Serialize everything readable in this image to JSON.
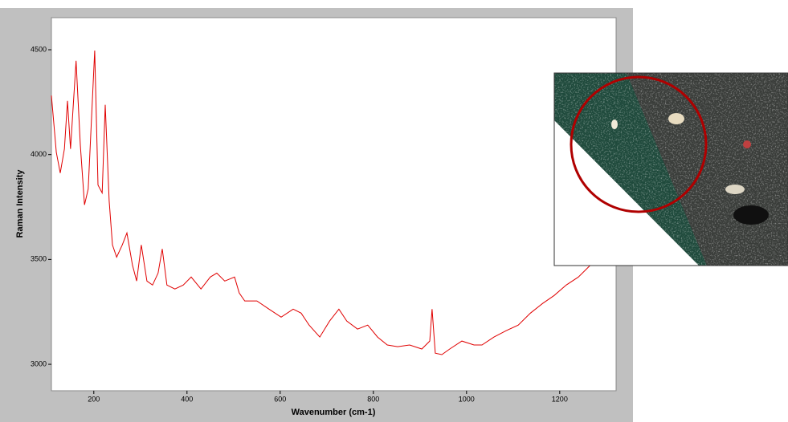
{
  "chart_data": {
    "type": "line",
    "xlabel": "Wavenumber (cm-1)",
    "ylabel": "Raman Intensity",
    "xlim": [
      109,
      1321
    ],
    "ylim": [
      2874,
      4653
    ],
    "xticks": [
      200,
      400,
      600,
      800,
      1000,
      1200
    ],
    "yticks": [
      3000,
      3500,
      4000,
      4500
    ],
    "grid": false,
    "x": [
      109,
      119.6,
      128,
      137,
      143.5,
      150,
      162,
      171,
      180,
      188,
      202,
      209,
      218,
      224.5,
      233,
      240,
      249,
      261,
      271,
      283,
      292,
      302,
      314,
      326,
      338,
      347,
      357,
      374,
      392,
      409,
      430,
      450,
      464,
      481,
      502,
      512,
      524,
      550,
      576,
      602,
      628,
      645,
      662,
      685,
      706,
      726,
      743,
      766,
      788,
      809,
      830,
      852,
      878,
      904,
      921,
      926,
      933,
      947,
      964,
      990,
      1016,
      1033,
      1059,
      1085,
      1111,
      1137,
      1163,
      1188,
      1214,
      1240,
      1266
    ],
    "series": [
      {
        "color": "#e00000",
        "values": [
          4282,
          4011,
          3912,
          4027,
          4256,
          4027,
          4447,
          4046,
          3760,
          3836,
          4496,
          3855,
          3817,
          4237,
          3779,
          3569,
          3511,
          3569,
          3626,
          3473,
          3397,
          3569,
          3397,
          3378,
          3435,
          3550,
          3378,
          3359,
          3378,
          3416,
          3359,
          3416,
          3435,
          3397,
          3416,
          3340,
          3302,
          3302,
          3263,
          3225,
          3263,
          3244,
          3187,
          3130,
          3206,
          3263,
          3206,
          3168,
          3187,
          3130,
          3092,
          3084,
          3092,
          3073,
          3111,
          3263,
          3053,
          3046,
          3073,
          3111,
          3092,
          3092,
          3130,
          3160,
          3187,
          3244,
          3290,
          3328,
          3378,
          3416,
          3473
        ]
      }
    ]
  }
}
